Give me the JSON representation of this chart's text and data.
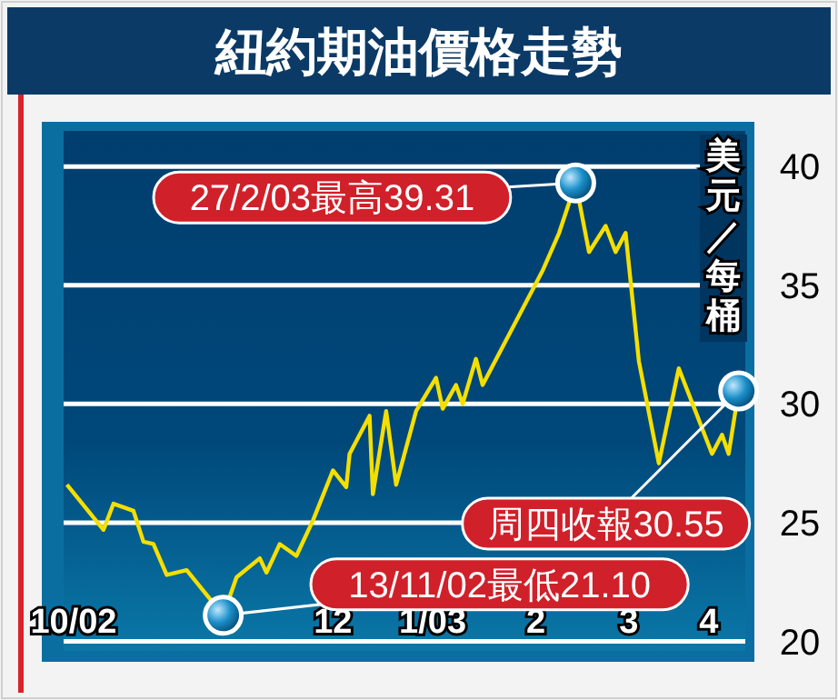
{
  "chart_data": {
    "type": "line",
    "title": "紐約期油價格走勢",
    "ylabel": "美元／每桶",
    "x": [
      "2002-09-27",
      "2002-10-08",
      "2002-10-11",
      "2002-10-17",
      "2002-10-20",
      "2002-10-23",
      "2002-10-27",
      "2002-11-02",
      "2002-11-13",
      "2002-11-17",
      "2002-11-24",
      "2002-11-26",
      "2002-11-30",
      "2002-12-05",
      "2002-12-10",
      "2002-12-16",
      "2002-12-20",
      "2002-12-21",
      "2002-12-27",
      "2002-12-28",
      "2003-01-01",
      "2003-01-04",
      "2003-01-10",
      "2003-01-16",
      "2003-01-18",
      "2003-01-22",
      "2003-01-24",
      "2003-01-28",
      "2003-01-30",
      "2003-02-17",
      "2003-02-22",
      "2003-02-27",
      "2003-03-03",
      "2003-03-08",
      "2003-03-11",
      "2003-03-14",
      "2003-03-18",
      "2003-03-24",
      "2003-03-30",
      "2003-04-09",
      "2003-04-12",
      "2003-04-14",
      "2003-04-17"
    ],
    "series": [
      {
        "color": "#f5df00",
        "values": [
          26.6,
          24.7,
          25.8,
          25.5,
          24.2,
          24.1,
          22.8,
          23.0,
          21.1,
          22.7,
          23.5,
          22.9,
          24.1,
          23.6,
          25.1,
          27.2,
          26.5,
          27.9,
          29.5,
          26.2,
          29.7,
          26.6,
          29.7,
          31.1,
          29.8,
          30.8,
          30.0,
          31.9,
          30.8,
          35.6,
          37.2,
          39.31,
          36.4,
          37.5,
          36.4,
          37.2,
          31.8,
          27.5,
          31.5,
          27.9,
          28.7,
          27.9,
          30.55
        ]
      }
    ],
    "xlim": [
      "2002-09-26",
      "2003-04-19"
    ],
    "xticks": [
      {
        "value": "2002-09-29",
        "label": "10/02"
      },
      {
        "value": "2002-12-16",
        "label": "12"
      },
      {
        "value": "2003-01-15",
        "label": "1/03"
      },
      {
        "value": "2003-02-15",
        "label": "2"
      },
      {
        "value": "2003-03-15",
        "label": "3"
      },
      {
        "value": "2003-04-08",
        "label": "4"
      }
    ],
    "ylim": [
      19.6,
      41.5
    ],
    "yticks": [
      20,
      25,
      30,
      35,
      40
    ],
    "grid": "y",
    "marker": "none",
    "line_style": "solid",
    "annotations": [
      {
        "text": "27/2/03最高39.31",
        "x": "2003-02-27",
        "y": 39.31
      },
      {
        "text": "13/11/02最低21.10",
        "x": "2002-11-13",
        "y": 21.1
      },
      {
        "text": "周四收報30.55",
        "x": "2003-04-17",
        "y": 30.55
      }
    ]
  }
}
